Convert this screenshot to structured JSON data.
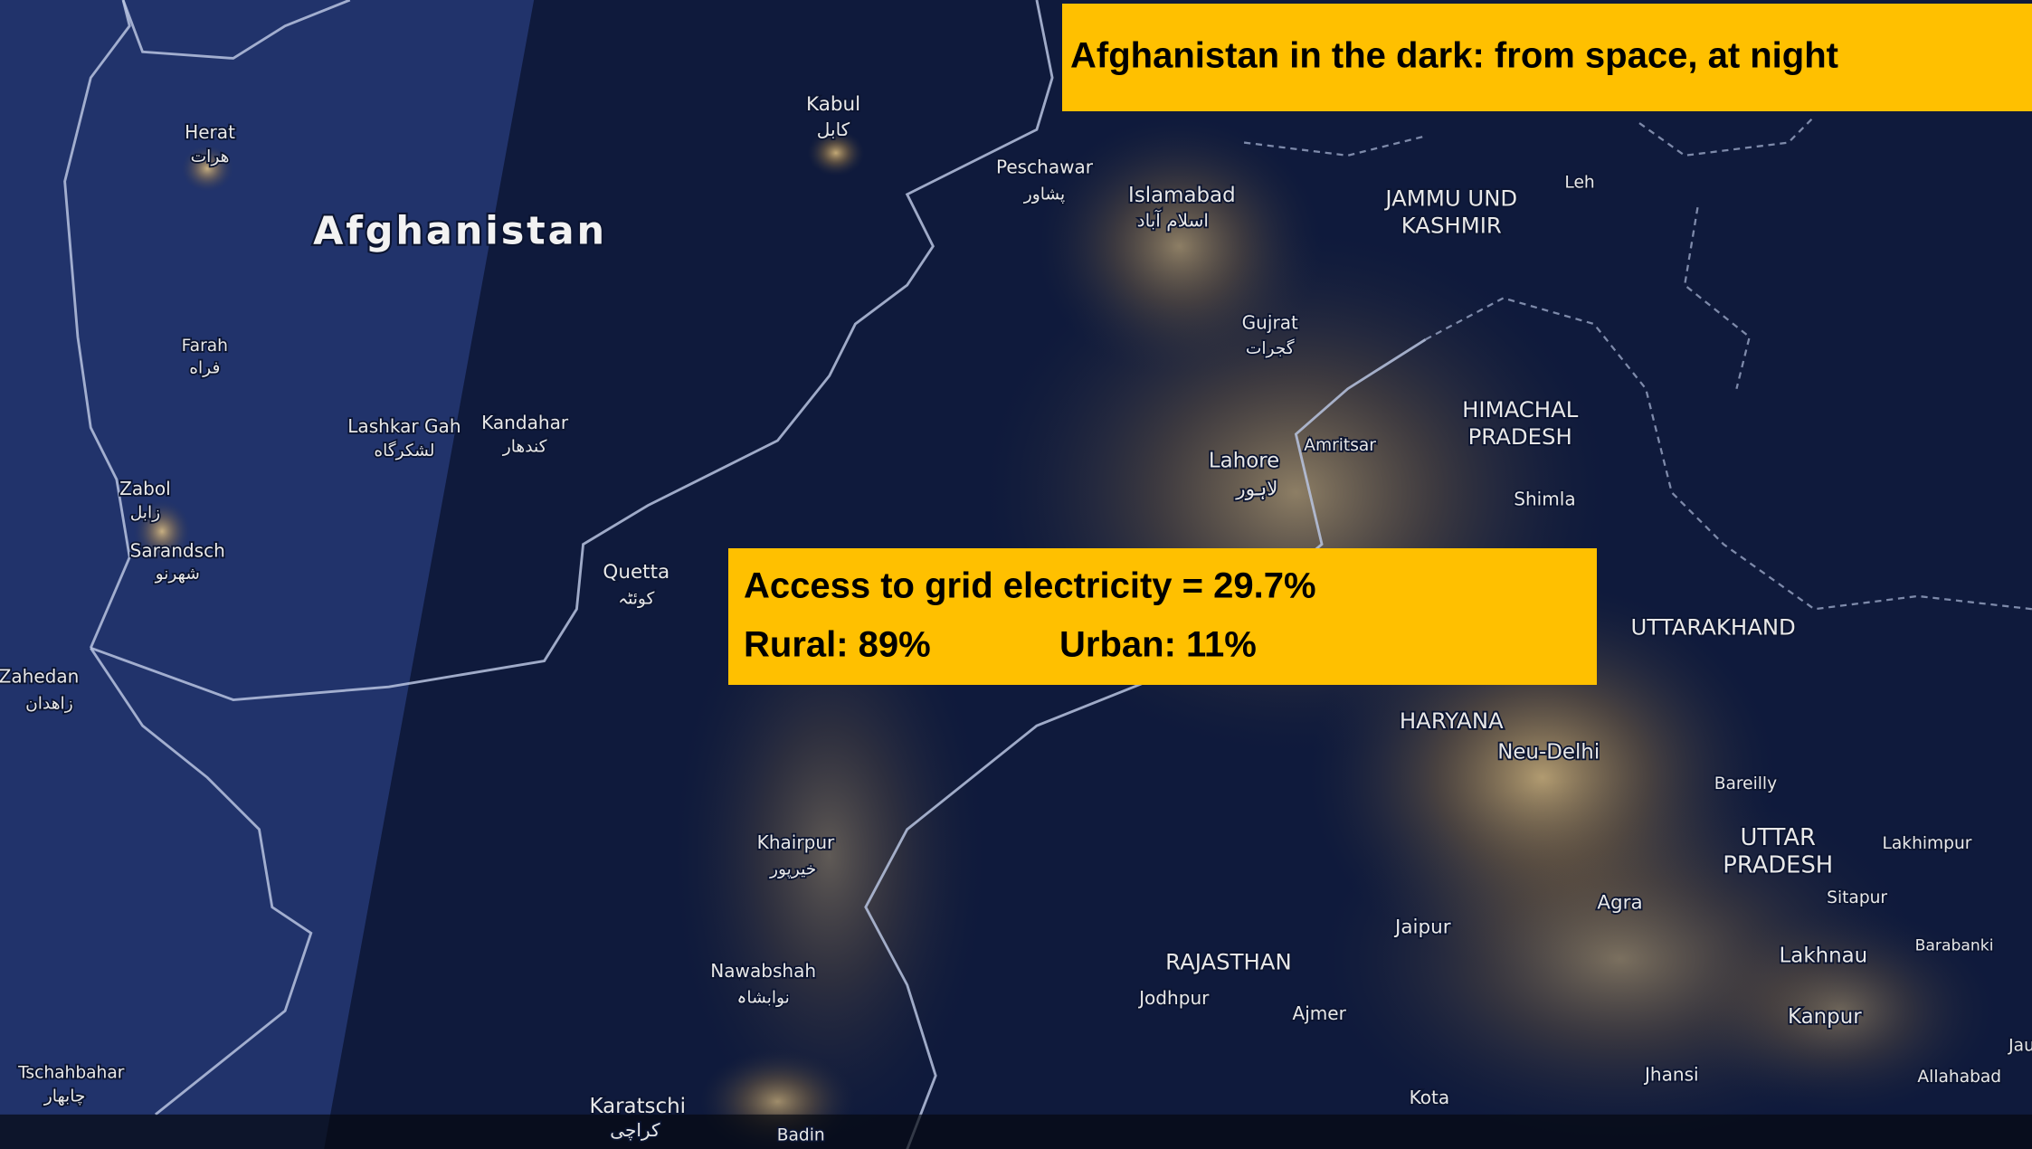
{
  "header": {
    "title": "Afghanistan in the dark: from space, at night"
  },
  "info_box": {
    "headline": "Access to grid electricity = 29.7%",
    "rural": "Rural: 89%",
    "urban": "Urban: 11%"
  },
  "map": {
    "country_label": "Afghanistan",
    "labels": [
      "Herat",
      "هرات",
      "Farah",
      "فراه",
      "Lashkar Gah",
      "لشکرگاه",
      "Kandahar",
      "کندهار",
      "Zabol",
      "زابل",
      "Sarandsch",
      "شهرنو",
      "Zahedan",
      "زاهدان",
      "Tschahbahar",
      "چابهار",
      "Kabul",
      "کابل",
      "Peschawar",
      "پشاور",
      "Islamabad",
      "اسلام آباد",
      "JAMMU UND",
      "KASHMIR",
      "Leh",
      "Gujrat",
      "گجرات",
      "HIMACHAL",
      "PRADESH",
      "Amritsar",
      "Lahore",
      "لاہور",
      "Shimla",
      "Quetta",
      "کوئٹہ",
      "UTTARAKHAND",
      "HARYANA",
      "Neu-Delhi",
      "Bareilly",
      "UTTAR",
      "PRADESH",
      "Lakhimpur",
      "Sitapur",
      "Khairpur",
      "خیرپور",
      "Agra",
      "Jaipur",
      "Barabanki",
      "Lakhnau",
      "RAJASTHAN",
      "Nawabshah",
      "نوابشاہ",
      "Jodhpur",
      "Ajmer",
      "Kanpur",
      "Jhansi",
      "Allahabad",
      "Jau",
      "Karatschi",
      "کراچی",
      "Kota",
      "Badin"
    ]
  }
}
